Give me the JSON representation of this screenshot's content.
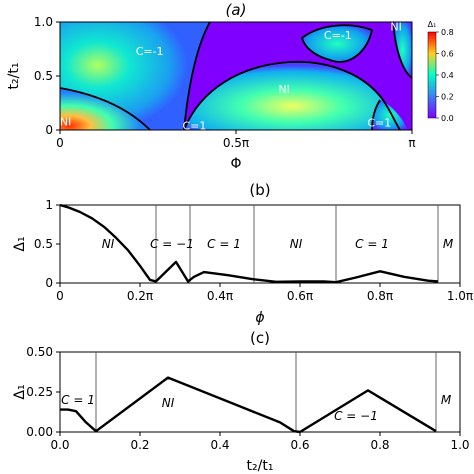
{
  "colors": {
    "black": "#000000",
    "vline": "#555555",
    "red": "#d62728",
    "green": "#2ca02c",
    "blue": "#1f1fff",
    "orange": "#ff7f0e",
    "yellow": "#e0a800",
    "purple": "#7b1f8f"
  },
  "chart_data": [
    {
      "panel": "(a)",
      "type": "heatmap",
      "title": "(a)",
      "xlabel": "Φ",
      "ylabel": "t₂/t₁",
      "xlim": [
        0,
        3.14159
      ],
      "ylim": [
        0,
        1.0
      ],
      "x_ticks": [
        "0",
        "0.5π",
        "π"
      ],
      "y_ticks": [
        "0",
        "0.5",
        "1.0"
      ],
      "colormap": "rainbow",
      "colorbar": {
        "label": "Δ₁",
        "range": [
          0,
          0.8
        ],
        "ticks": [
          "0.0",
          "0.2",
          "0.4",
          "0.6",
          "0.8"
        ]
      },
      "region_labels": [
        {
          "text": "C=-1",
          "x": 0.8,
          "y": 0.73
        },
        {
          "text": "NI",
          "x": 0.05,
          "y": 0.08
        },
        {
          "text": "C=1",
          "x": 1.2,
          "y": 0.04
        },
        {
          "text": "NI",
          "x": 2.0,
          "y": 0.38
        },
        {
          "text": "C=-1",
          "x": 2.48,
          "y": 0.88
        },
        {
          "text": "NI",
          "x": 3.0,
          "y": 0.96
        },
        {
          "text": "C=1",
          "x": 2.85,
          "y": 0.07
        }
      ]
    },
    {
      "panel": "(b)",
      "type": "line",
      "title": "(b)",
      "xlabel": "ϕ",
      "ylabel": "Δ₁",
      "xlim": [
        0,
        1.0
      ],
      "ylim": [
        0,
        1.0
      ],
      "x_ticks": [
        "0",
        "0.2π",
        "0.4π",
        "0.6π",
        "0.8π",
        "1.0π"
      ],
      "y_ticks": [
        "0",
        "0.5",
        "1"
      ],
      "x": [
        0,
        0.02,
        0.05,
        0.08,
        0.11,
        0.14,
        0.17,
        0.2,
        0.225,
        0.24,
        0.29,
        0.32,
        0.335,
        0.36,
        0.42,
        0.48,
        0.54,
        0.6,
        0.66,
        0.69,
        0.74,
        0.8,
        0.86,
        0.92,
        0.945
      ],
      "y": [
        1.0,
        0.97,
        0.91,
        0.83,
        0.72,
        0.58,
        0.42,
        0.22,
        0.04,
        0.02,
        0.27,
        0.02,
        0.08,
        0.14,
        0.1,
        0.05,
        0.015,
        0.02,
        0.02,
        0.01,
        0.07,
        0.15,
        0.08,
        0.03,
        0.02
      ],
      "vlines": [
        0.24,
        0.325,
        0.485,
        0.69,
        0.945
      ],
      "region_labels": [
        {
          "text": "NI",
          "x": 0.12,
          "y": 0.5,
          "color": "red"
        },
        {
          "text": "C = −1",
          "x": 0.28,
          "y": 0.5,
          "color": "green",
          "small": true
        },
        {
          "text": "C = 1",
          "x": 0.41,
          "y": 0.5,
          "color": "blue"
        },
        {
          "text": "NI",
          "x": 0.59,
          "y": 0.5,
          "color": "yellow"
        },
        {
          "text": "C = 1",
          "x": 0.78,
          "y": 0.5,
          "color": "orange"
        },
        {
          "text": "M",
          "x": 0.97,
          "y": 0.5,
          "color": "purple"
        }
      ]
    },
    {
      "panel": "(c)",
      "type": "line",
      "title": "(c)",
      "xlabel": "t₂/t₁",
      "ylabel": "Δ₁",
      "xlim": [
        0,
        1.0
      ],
      "ylim": [
        0,
        0.5
      ],
      "x_ticks": [
        "0.0",
        "0.2",
        "0.4",
        "0.6",
        "0.8",
        "1.0"
      ],
      "y_ticks": [
        "0.00",
        "0.25",
        "0.50"
      ],
      "x": [
        0,
        0.02,
        0.04,
        0.065,
        0.09,
        0.27,
        0.45,
        0.55,
        0.585,
        0.6,
        0.77,
        0.94
      ],
      "y": [
        0.14,
        0.14,
        0.13,
        0.06,
        0.005,
        0.34,
        0.16,
        0.06,
        0.005,
        0.0,
        0.26,
        0.005
      ],
      "vlines": [
        0.09,
        0.59,
        0.94
      ],
      "region_labels": [
        {
          "text": "C = 1",
          "x": 0.045,
          "y": 0.2,
          "color": "red"
        },
        {
          "text": "NI",
          "x": 0.27,
          "y": 0.18,
          "color": "green"
        },
        {
          "text": "C = −1",
          "x": 0.74,
          "y": 0.1,
          "color": "blue"
        },
        {
          "text": "M",
          "x": 0.965,
          "y": 0.2,
          "color": "orange"
        }
      ]
    }
  ]
}
